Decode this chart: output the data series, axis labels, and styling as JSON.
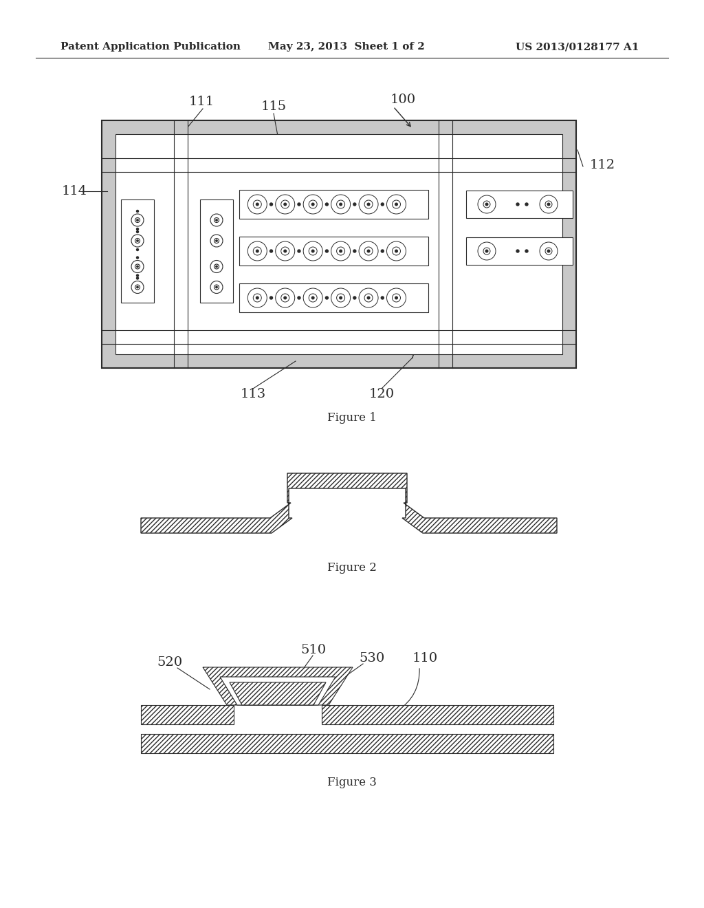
{
  "background": "#ffffff",
  "header_left": "Patent Application Publication",
  "header_center": "May 23, 2013  Sheet 1 of 2",
  "header_right": "US 2013/0128177 A1",
  "header_fontsize": 11,
  "fig1_caption": "Figure 1",
  "fig2_caption": "Figure 2",
  "fig3_caption": "Figure 3",
  "caption_fontsize": 12,
  "label_fontsize": 14,
  "line_color": "#2a2a2a",
  "gray_fill": "#c8c8c8",
  "white": "#ffffff"
}
